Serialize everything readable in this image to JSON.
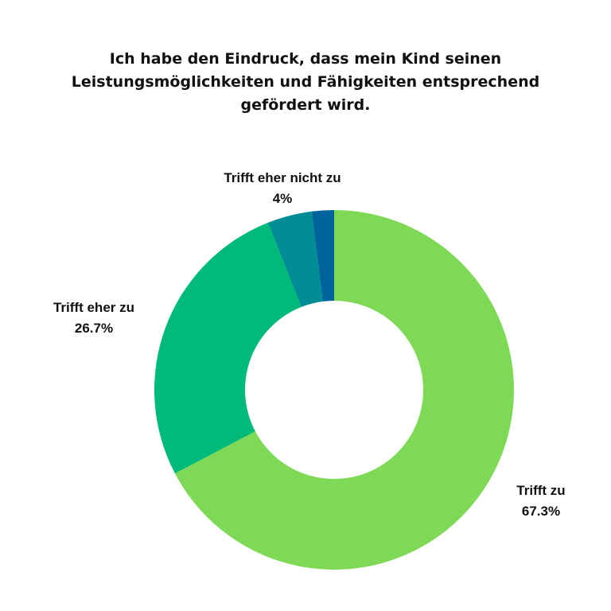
{
  "chart_data": {
    "type": "pie",
    "title": "Ich habe den Eindruck, dass mein Kind seinen Leistungsmöglichkeiten und Fähigkeiten entsprechend gefördert wird.",
    "donut": true,
    "start": "top",
    "direction": "clockwise",
    "slices": [
      {
        "name": "Trifft zu",
        "value": 67.3,
        "value_label": "67.3%",
        "color": "#7ed957"
      },
      {
        "name": "Trifft eher zu",
        "value": 26.7,
        "value_label": "26.7%",
        "color": "#00ba7a"
      },
      {
        "name": "Trifft eher nicht zu",
        "value": 4,
        "value_label": "4%",
        "color": "#008c95"
      },
      {
        "name": "",
        "value": 2,
        "value_label": "",
        "color": "#00639b"
      }
    ]
  }
}
